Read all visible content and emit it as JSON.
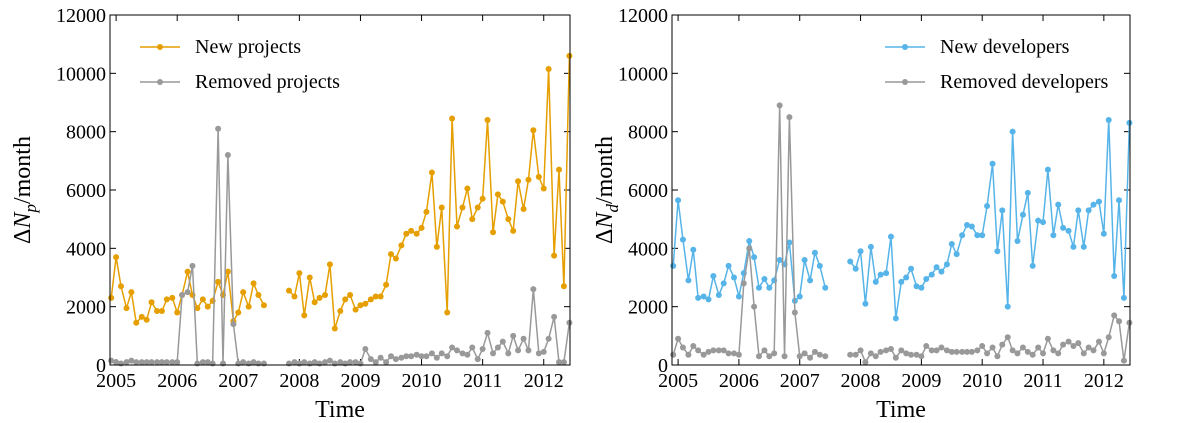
{
  "chart_data": [
    {
      "type": "line",
      "legend": "upper left",
      "xlabel": "Time",
      "ylabel": [
        "ΔN",
        "p",
        "/month"
      ],
      "xlim": [
        2004.9,
        2012.43
      ],
      "xticks": [
        2005,
        2006,
        2007,
        2008,
        2009,
        2010,
        2011,
        2012
      ],
      "ylim": [
        0,
        12000
      ],
      "yticks": [
        0,
        2000,
        4000,
        6000,
        8000,
        10000,
        12000
      ],
      "x": [
        2004.92,
        2005.0,
        2005.08,
        2005.17,
        2005.25,
        2005.33,
        2005.42,
        2005.5,
        2005.58,
        2005.67,
        2005.75,
        2005.83,
        2005.92,
        2006.0,
        2006.08,
        2006.17,
        2006.25,
        2006.33,
        2006.42,
        2006.5,
        2006.58,
        2006.67,
        2006.75,
        2006.83,
        2006.92,
        2007.0,
        2007.08,
        2007.17,
        2007.25,
        2007.33,
        2007.42,
        2007.5,
        2007.58,
        2007.67,
        2007.75,
        2007.83,
        2007.92,
        2008.0,
        2008.08,
        2008.17,
        2008.25,
        2008.33,
        2008.42,
        2008.5,
        2008.58,
        2008.67,
        2008.75,
        2008.83,
        2008.92,
        2009.0,
        2009.08,
        2009.17,
        2009.25,
        2009.33,
        2009.42,
        2009.5,
        2009.58,
        2009.67,
        2009.75,
        2009.83,
        2009.92,
        2010.0,
        2010.08,
        2010.17,
        2010.25,
        2010.33,
        2010.42,
        2010.5,
        2010.58,
        2010.67,
        2010.75,
        2010.83,
        2010.92,
        2011.0,
        2011.08,
        2011.17,
        2011.25,
        2011.33,
        2011.42,
        2011.5,
        2011.58,
        2011.67,
        2011.75,
        2011.83,
        2011.92,
        2012.0,
        2012.08,
        2012.17,
        2012.25,
        2012.33,
        2012.42
      ],
      "series": [
        {
          "name": "New projects",
          "color": "#e69f00",
          "values": [
            2300,
            3700,
            2700,
            1950,
            2500,
            1450,
            1650,
            1550,
            2150,
            1850,
            1850,
            2250,
            2300,
            1800,
            2400,
            3200,
            2400,
            1950,
            2250,
            2000,
            2200,
            2850,
            2400,
            3200,
            1500,
            1800,
            2500,
            2000,
            2800,
            2400,
            2050,
            null,
            null,
            null,
            null,
            2550,
            2350,
            3150,
            1700,
            3000,
            2150,
            2300,
            2400,
            3450,
            1250,
            1850,
            2250,
            2400,
            1900,
            2050,
            2100,
            2250,
            2350,
            2350,
            2750,
            3800,
            3650,
            4100,
            4500,
            4600,
            4500,
            4700,
            5250,
            6600,
            4050,
            5400,
            1800,
            8450,
            4750,
            5400,
            6050,
            5000,
            5400,
            5700,
            8400,
            4550,
            5850,
            5600,
            5000,
            4600,
            6300,
            5350,
            6350,
            8050,
            6450,
            6050,
            10150,
            3750,
            6700,
            2700,
            10600
          ]
        },
        {
          "name": "Removed projects",
          "color": "#999999",
          "values": [
            150,
            100,
            50,
            100,
            150,
            100,
            100,
            100,
            100,
            100,
            100,
            100,
            100,
            100,
            2400,
            2500,
            3400,
            50,
            100,
            100,
            50,
            8100,
            50,
            7200,
            1400,
            50,
            100,
            50,
            100,
            50,
            50,
            null,
            null,
            null,
            null,
            50,
            100,
            50,
            100,
            50,
            100,
            50,
            100,
            150,
            50,
            100,
            50,
            100,
            100,
            50,
            550,
            200,
            100,
            250,
            100,
            300,
            200,
            250,
            300,
            300,
            350,
            300,
            300,
            400,
            250,
            400,
            300,
            600,
            500,
            400,
            350,
            600,
            200,
            550,
            1100,
            400,
            600,
            800,
            400,
            1000,
            500,
            900,
            500,
            2600,
            400,
            450,
            900,
            1650,
            100,
            100,
            1450
          ]
        }
      ]
    },
    {
      "type": "line",
      "legend": "upper right",
      "xlabel": "Time",
      "ylabel": [
        "ΔN",
        "d",
        "/month"
      ],
      "xlim": [
        2004.9,
        2012.43
      ],
      "xticks": [
        2005,
        2006,
        2007,
        2008,
        2009,
        2010,
        2011,
        2012
      ],
      "ylim": [
        0,
        12000
      ],
      "yticks": [
        0,
        2000,
        4000,
        6000,
        8000,
        10000,
        12000
      ],
      "x": [
        2004.92,
        2005.0,
        2005.08,
        2005.17,
        2005.25,
        2005.33,
        2005.42,
        2005.5,
        2005.58,
        2005.67,
        2005.75,
        2005.83,
        2005.92,
        2006.0,
        2006.08,
        2006.17,
        2006.25,
        2006.33,
        2006.42,
        2006.5,
        2006.58,
        2006.67,
        2006.75,
        2006.83,
        2006.92,
        2007.0,
        2007.08,
        2007.17,
        2007.25,
        2007.33,
        2007.42,
        2007.5,
        2007.58,
        2007.67,
        2007.75,
        2007.83,
        2007.92,
        2008.0,
        2008.08,
        2008.17,
        2008.25,
        2008.33,
        2008.42,
        2008.5,
        2008.58,
        2008.67,
        2008.75,
        2008.83,
        2008.92,
        2009.0,
        2009.08,
        2009.17,
        2009.25,
        2009.33,
        2009.42,
        2009.5,
        2009.58,
        2009.67,
        2009.75,
        2009.83,
        2009.92,
        2010.0,
        2010.08,
        2010.17,
        2010.25,
        2010.33,
        2010.42,
        2010.5,
        2010.58,
        2010.67,
        2010.75,
        2010.83,
        2010.92,
        2011.0,
        2011.08,
        2011.17,
        2011.25,
        2011.33,
        2011.42,
        2011.5,
        2011.58,
        2011.67,
        2011.75,
        2011.83,
        2011.92,
        2012.0,
        2012.08,
        2012.17,
        2012.25,
        2012.33,
        2012.42
      ],
      "series": [
        {
          "name": "New developers",
          "color": "#56b4e9",
          "values": [
            3400,
            5650,
            4300,
            2900,
            3950,
            2300,
            2350,
            2250,
            3050,
            2400,
            2800,
            3400,
            3000,
            2350,
            3150,
            4250,
            3700,
            2650,
            2950,
            2650,
            2900,
            3600,
            3450,
            4200,
            2200,
            2350,
            3600,
            2900,
            3850,
            3400,
            2650,
            null,
            null,
            null,
            null,
            3550,
            3300,
            3900,
            2100,
            4050,
            2850,
            3100,
            3150,
            4400,
            1600,
            2850,
            3000,
            3300,
            2700,
            2650,
            2950,
            3100,
            3350,
            3200,
            3450,
            4150,
            3800,
            4450,
            4800,
            4750,
            4450,
            4450,
            5450,
            6900,
            3900,
            5300,
            2000,
            8000,
            4250,
            5150,
            5900,
            3400,
            4950,
            4900,
            6700,
            4450,
            5500,
            4700,
            4600,
            4050,
            5300,
            4050,
            5300,
            5500,
            5600,
            4500,
            8400,
            3050,
            5650,
            2300,
            8300
          ]
        },
        {
          "name": "Removed developers",
          "color": "#999999",
          "values": [
            350,
            900,
            600,
            350,
            650,
            500,
            350,
            450,
            500,
            500,
            500,
            400,
            400,
            350,
            2800,
            4000,
            2000,
            300,
            500,
            300,
            400,
            8900,
            300,
            8500,
            1800,
            300,
            400,
            250,
            450,
            350,
            300,
            null,
            null,
            null,
            null,
            350,
            350,
            500,
            100,
            400,
            300,
            450,
            500,
            550,
            250,
            500,
            400,
            350,
            350,
            300,
            650,
            500,
            500,
            600,
            500,
            450,
            450,
            450,
            450,
            450,
            500,
            650,
            400,
            600,
            300,
            700,
            950,
            500,
            400,
            600,
            450,
            350,
            600,
            400,
            900,
            500,
            400,
            700,
            800,
            650,
            750,
            400,
            600,
            500,
            800,
            400,
            950,
            1700,
            1500,
            150,
            1450
          ]
        }
      ]
    }
  ]
}
